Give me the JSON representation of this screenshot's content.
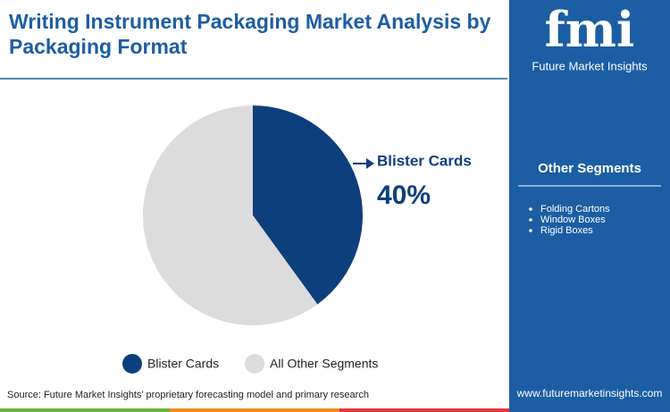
{
  "chart_data": {
    "type": "pie",
    "title": "Writing Instrument Packaging Market Analysis by Packaging Format",
    "categories": [
      "Blister Cards",
      "All Other Segments"
    ],
    "values": [
      40,
      60
    ],
    "value_labels": [
      "40%",
      null
    ],
    "colors": [
      "#0d3f7d",
      "#dcdcdc"
    ]
  },
  "sidebar": {
    "title": "Other Segments",
    "items": [
      "Folding Cartons",
      "Window Boxes",
      "Rigid Boxes"
    ]
  },
  "logo": {
    "mark": "fmi",
    "name": "Future Market Insights"
  },
  "footer": {
    "source": "Source: Future Market Insights’ proprietary forecasting model and primary research",
    "url": "www.futuremarketinsights.com"
  }
}
